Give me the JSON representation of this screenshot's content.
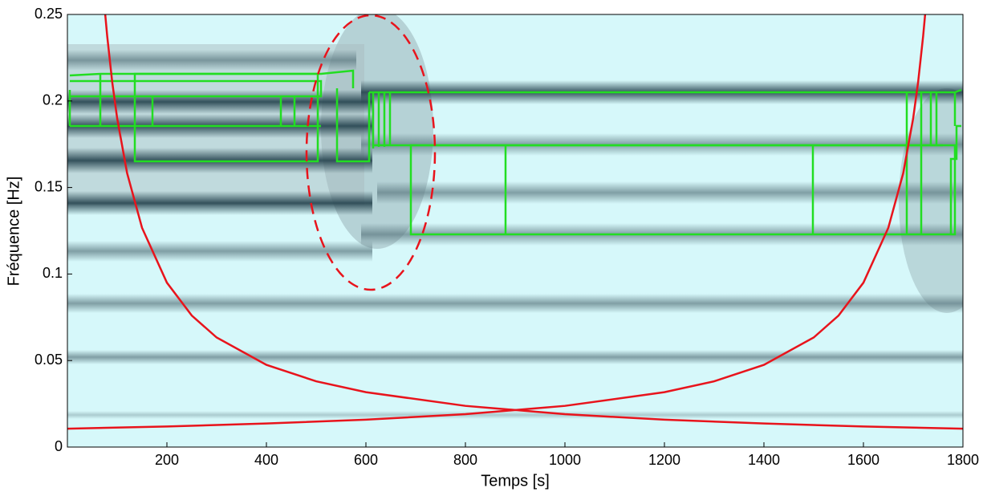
{
  "chart_data": {
    "type": "line",
    "xlabel": "Temps  [s]",
    "ylabel": "Fréquence  [Hz]",
    "xlim": [
      0,
      1800
    ],
    "ylim": [
      0,
      0.25
    ],
    "xticks": [
      200,
      400,
      600,
      800,
      1000,
      1200,
      1400,
      1600,
      1800
    ],
    "yticks": [
      0,
      0.05,
      0.1,
      0.15,
      0.2,
      0.25
    ],
    "series": [
      {
        "color": "#e8141c",
        "x": [
          76,
          80,
          90,
          100,
          120,
          150,
          200,
          250,
          300,
          400,
          500,
          600,
          800,
          1000,
          1200,
          1400,
          1600,
          1800
        ],
        "values": [
          0.25,
          0.2375,
          0.2111,
          0.19,
          0.1583,
          0.1267,
          0.095,
          0.076,
          0.0633,
          0.0475,
          0.038,
          0.0317,
          0.0238,
          0.019,
          0.0158,
          0.0136,
          0.0119,
          0.0106
        ]
      },
      {
        "color": "#e8141c",
        "x": [
          0,
          200,
          400,
          600,
          800,
          1000,
          1200,
          1300,
          1400,
          1500,
          1550,
          1600,
          1650,
          1680,
          1700,
          1710,
          1720,
          1724
        ],
        "values": [
          0.0106,
          0.0119,
          0.0136,
          0.0158,
          0.019,
          0.0238,
          0.0317,
          0.038,
          0.0475,
          0.0633,
          0.076,
          0.095,
          0.1267,
          0.1583,
          0.19,
          0.2111,
          0.2375,
          0.25
        ]
      }
    ]
  }
}
